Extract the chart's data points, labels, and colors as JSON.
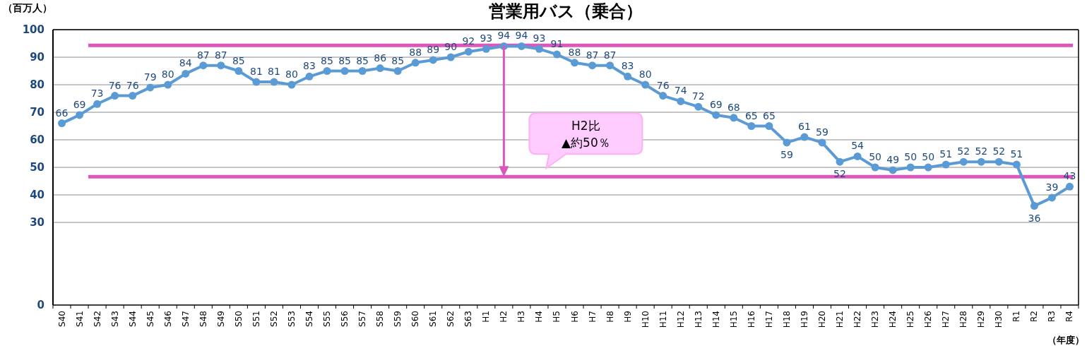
{
  "chart_data": {
    "type": "line",
    "title": "営業用バス（乗合）",
    "ylabel": "（百万人）",
    "xlabel": "（年度）",
    "categories": [
      "S40",
      "S41",
      "S42",
      "S43",
      "S44",
      "S45",
      "S46",
      "S47",
      "S48",
      "S49",
      "S50",
      "S51",
      "S52",
      "S53",
      "S54",
      "S55",
      "S56",
      "S57",
      "S58",
      "S59",
      "S60",
      "S61",
      "S62",
      "S63",
      "H1",
      "H2",
      "H3",
      "H4",
      "H5",
      "H6",
      "H7",
      "H8",
      "H9",
      "H10",
      "H11",
      "H12",
      "H13",
      "H14",
      "H15",
      "H16",
      "H17",
      "H18",
      "H19",
      "H20",
      "H21",
      "H22",
      "H23",
      "H24",
      "H25",
      "H26",
      "H27",
      "H28",
      "H29",
      "H30",
      "R1",
      "R2",
      "R3",
      "R4"
    ],
    "series": [
      {
        "color": "#5b9bd5",
        "values": [
          66,
          69,
          73,
          76,
          76,
          79,
          80,
          84,
          87,
          87,
          85,
          81,
          81,
          80,
          83,
          85,
          85,
          85,
          86,
          85,
          88,
          89,
          90,
          92,
          93,
          94,
          94,
          93,
          91,
          88,
          87,
          87,
          83,
          80,
          76,
          74,
          72,
          69,
          68,
          65,
          65,
          59,
          61,
          59,
          52,
          54,
          50,
          49,
          50,
          50,
          51,
          52,
          52,
          52,
          51,
          36,
          39,
          43
        ]
      }
    ],
    "ylim": [
      0,
      100
    ],
    "yticks": [
      0,
      30,
      40,
      50,
      60,
      70,
      80,
      90,
      100
    ],
    "grid": "y",
    "marker": "circle",
    "line_style": "solid",
    "data_labels": true,
    "ref_lines": [
      {
        "axis": "y",
        "value": 94.3,
        "color": "#dc57bd"
      },
      {
        "axis": "y",
        "value": 46.6,
        "color": "#dc57bd"
      }
    ],
    "annotations": [
      "H2比\n▲約50％"
    ]
  }
}
